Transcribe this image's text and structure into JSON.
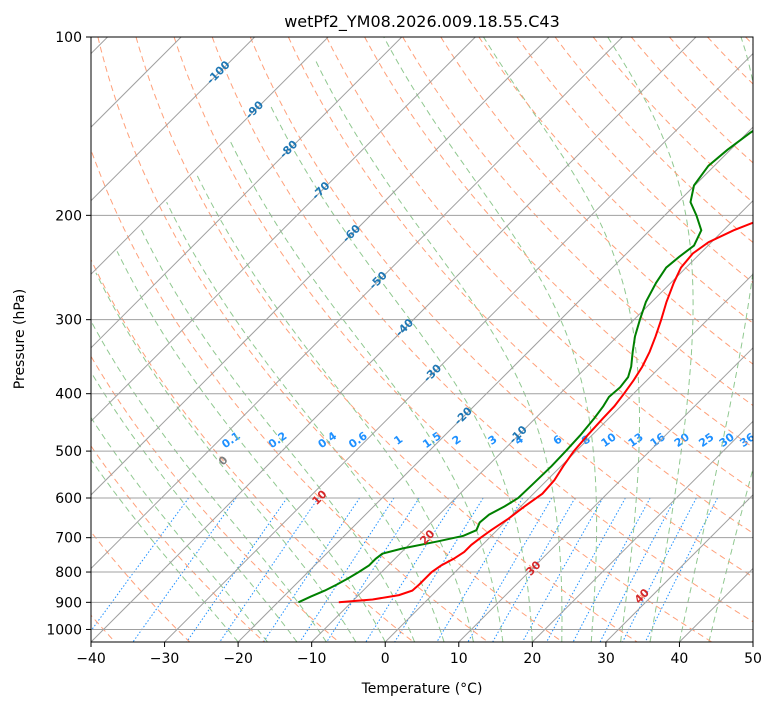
{
  "chart_data": {
    "type": "skew-t",
    "title": "wetPf2_YM08.2026.009.18.55.C43",
    "xlabel": "Temperature (°C)",
    "ylabel": "Pressure (hPa)",
    "xlim": [
      -40,
      50
    ],
    "ylim": [
      1050,
      100
    ],
    "y_scale": "log",
    "x_ticks": [
      -40,
      -30,
      -20,
      -10,
      0,
      10,
      20,
      30,
      40,
      50
    ],
    "y_ticks": [
      100,
      200,
      300,
      400,
      500,
      600,
      700,
      800,
      900,
      1000
    ],
    "grid": true,
    "colors": {
      "temperature": "#ff0000",
      "dewpoint": "#008000",
      "isotherm": "#a0a0a0",
      "dry_adiabat": "#ffa07a",
      "moist_adiabat": "#90c890",
      "mixing_ratio": "#1e90ff",
      "isotherm_label": "#1f77b4",
      "theta_label": "#d62728"
    },
    "isotherm_labels": [
      "-100",
      "-90",
      "-80",
      "-70",
      "-60",
      "-50",
      "-40",
      "-30",
      "-20",
      "-10"
    ],
    "mixing_ratio_labels": [
      "0.1",
      "0.2",
      "0.4",
      "0.6",
      "1",
      "1.5",
      "2",
      "3",
      "4",
      "6",
      "8",
      "10",
      "13",
      "16",
      "20",
      "25",
      "30",
      "36"
    ],
    "theta_labels": [
      "0",
      "10",
      "20",
      "30",
      "40"
    ],
    "series": [
      {
        "values": [
          [
            900,
            -11.7
          ],
          [
            890,
            -7.5
          ],
          [
            875,
            -4.5
          ],
          [
            860,
            -3.3
          ],
          [
            840,
            -3.2
          ],
          [
            800,
            -3.2
          ],
          [
            780,
            -2.8
          ],
          [
            760,
            -2.0
          ],
          [
            740,
            -1.5
          ],
          [
            720,
            -1.5
          ],
          [
            700,
            -1.2
          ],
          [
            680,
            -0.8
          ],
          [
            650,
            0.0
          ],
          [
            620,
            0.5
          ],
          [
            590,
            1.2
          ],
          [
            560,
            1.0
          ],
          [
            530,
            0.3
          ],
          [
            500,
            -0.3
          ],
          [
            470,
            -0.6
          ],
          [
            440,
            -0.8
          ],
          [
            420,
            -0.9
          ],
          [
            400,
            -1.3
          ],
          [
            380,
            -1.8
          ],
          [
            360,
            -2.5
          ],
          [
            340,
            -3.5
          ],
          [
            320,
            -4.8
          ],
          [
            300,
            -6.3
          ],
          [
            280,
            -8.0
          ],
          [
            260,
            -9.6
          ],
          [
            245,
            -10.7
          ],
          [
            232,
            -11.0
          ],
          [
            222,
            -10.4
          ],
          [
            212,
            -8.6
          ],
          [
            202,
            -6.0
          ],
          [
            192,
            -3.5
          ],
          [
            180,
            -1.7
          ],
          [
            160,
            0.5
          ],
          [
            140,
            2.8
          ],
          [
            125,
            4.8
          ],
          [
            115,
            6.5
          ],
          [
            108,
            7.6
          ],
          [
            100,
            8.3
          ]
        ]
      },
      {
        "values": [
          [
            900,
            -17.2
          ],
          [
            880,
            -16.3
          ],
          [
            860,
            -15.2
          ],
          [
            840,
            -14.4
          ],
          [
            820,
            -13.7
          ],
          [
            800,
            -13.1
          ],
          [
            780,
            -12.6
          ],
          [
            760,
            -12.6
          ],
          [
            745,
            -12.4
          ],
          [
            730,
            -10.4
          ],
          [
            710,
            -6.5
          ],
          [
            695,
            -3.8
          ],
          [
            680,
            -2.8
          ],
          [
            660,
            -3.4
          ],
          [
            640,
            -3.2
          ],
          [
            620,
            -2.2
          ],
          [
            600,
            -1.5
          ],
          [
            570,
            -1.4
          ],
          [
            530,
            -1.3
          ],
          [
            500,
            -1.4
          ],
          [
            470,
            -1.6
          ],
          [
            440,
            -2.0
          ],
          [
            420,
            -2.4
          ],
          [
            405,
            -2.9
          ],
          [
            390,
            -2.7
          ],
          [
            375,
            -3.0
          ],
          [
            360,
            -4.0
          ],
          [
            340,
            -5.8
          ],
          [
            320,
            -7.6
          ],
          [
            300,
            -9.2
          ],
          [
            280,
            -10.8
          ],
          [
            260,
            -12.0
          ],
          [
            245,
            -12.7
          ],
          [
            235,
            -12.4
          ],
          [
            225,
            -11.9
          ],
          [
            212,
            -13.0
          ],
          [
            200,
            -15.7
          ],
          [
            190,
            -18.3
          ],
          [
            178,
            -20.1
          ],
          [
            165,
            -20.8
          ],
          [
            155,
            -20.4
          ],
          [
            145,
            -19.6
          ],
          [
            135,
            -18.2
          ],
          [
            125,
            -16.3
          ],
          [
            115,
            -14.2
          ],
          [
            106,
            -12.8
          ],
          [
            100,
            -12.6
          ]
        ]
      }
    ]
  }
}
